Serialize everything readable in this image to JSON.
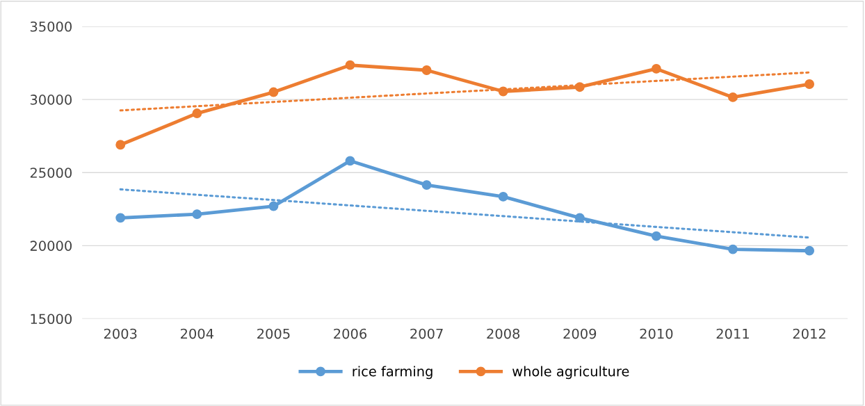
{
  "chart_data": {
    "type": "line",
    "categories": [
      "2003",
      "2004",
      "2005",
      "2006",
      "2007",
      "2008",
      "2009",
      "2010",
      "2011",
      "2012"
    ],
    "series": [
      {
        "name": "rice farming",
        "color": "#5b9bd5",
        "marker": "circle",
        "line_style": "solid",
        "values": [
          21900,
          22150,
          22700,
          25800,
          24150,
          23350,
          21900,
          20650,
          19750,
          19650
        ]
      },
      {
        "name": "whole agriculture",
        "color": "#ed7d31",
        "marker": "circle",
        "line_style": "solid",
        "values": [
          26900,
          29050,
          30500,
          32350,
          32000,
          30550,
          30850,
          32100,
          30150,
          31050
        ]
      },
      {
        "color": "#5b9bd5",
        "marker": "none",
        "line_style": "dotted",
        "values": [
          23850,
          23480,
          23120,
          22750,
          22380,
          22020,
          21650,
          21280,
          20920,
          20550
        ]
      },
      {
        "color": "#ed7d31",
        "marker": "none",
        "line_style": "dotted",
        "values": [
          29250,
          29540,
          29830,
          30120,
          30410,
          30690,
          30980,
          31270,
          31560,
          31850
        ]
      }
    ],
    "ylim": [
      15000,
      35000
    ],
    "yticks": [
      15000,
      20000,
      25000,
      30000,
      35000
    ],
    "grid": "y",
    "legend": "bottom"
  }
}
